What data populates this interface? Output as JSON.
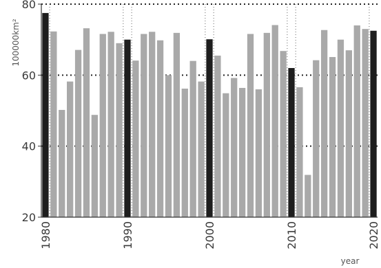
{
  "chart_data": {
    "type": "bar",
    "title": "",
    "xlabel": "year",
    "ylabel": "100000km²",
    "ylim": [
      20,
      80
    ],
    "yticks": [
      20,
      40,
      60,
      80
    ],
    "xticks": [
      1980,
      1990,
      2000,
      2010,
      2020
    ],
    "grid": {
      "horizontal": [
        40,
        60,
        80
      ],
      "vertical_at_decades": true,
      "style": "dotted"
    },
    "x": [
      1980,
      1981,
      1982,
      1983,
      1984,
      1985,
      1986,
      1987,
      1988,
      1989,
      1990,
      1991,
      1992,
      1993,
      1994,
      1995,
      1996,
      1997,
      1998,
      1999,
      2000,
      2001,
      2002,
      2003,
      2004,
      2005,
      2006,
      2007,
      2008,
      2009,
      2010,
      2011,
      2012,
      2013,
      2014,
      2015,
      2016,
      2017,
      2018,
      2019,
      2020
    ],
    "values": [
      77.5,
      72.3,
      50.2,
      58.2,
      67.1,
      73.2,
      48.8,
      71.6,
      72.2,
      69.0,
      70.0,
      64.1,
      71.6,
      72.2,
      69.8,
      60.0,
      71.9,
      56.2,
      64.0,
      58.2,
      70.1,
      65.5,
      54.9,
      59.2,
      56.4,
      71.6,
      56.0,
      71.9,
      74.1,
      66.8,
      62.0,
      56.6,
      31.9,
      64.2,
      72.7,
      65.1,
      70.0,
      67.0,
      74.0,
      73.0,
      72.5
    ],
    "highlight_years": [
      1980,
      1990,
      2000,
      2010,
      2020
    ],
    "colors": {
      "bar": "#a9a9a9",
      "highlight": "#1e1e1e",
      "grid": "#222222",
      "axis": "#333333"
    }
  }
}
